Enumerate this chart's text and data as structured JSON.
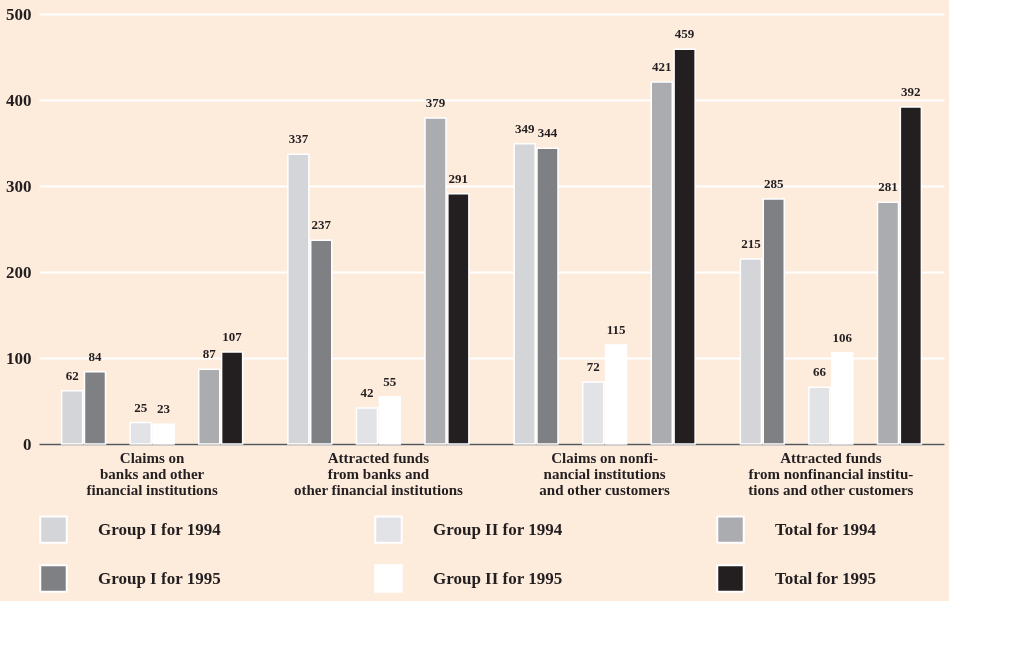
{
  "chart_data": {
    "type": "bar",
    "categories": [
      "Claims on\nbanks and other\nfinancial institutions",
      "Attracted funds\nfrom banks and\nother financial institutions",
      "Claims on nonfi-\nnancial institutions\nand other customers",
      "Attracted funds\nfrom nonfinancial institu-\ntions and other customers"
    ],
    "series": [
      {
        "name": "Group I for 1994",
        "color": "#d4d5d9",
        "values": [
          62,
          337,
          349,
          215
        ]
      },
      {
        "name": "Group I for 1995",
        "color": "#7f8084",
        "values": [
          84,
          237,
          344,
          285
        ]
      },
      {
        "name": "Group II for 1994",
        "color": "#e2e3e7",
        "values": [
          25,
          42,
          72,
          66
        ]
      },
      {
        "name": "Group II for 1995",
        "color": "#ffffff",
        "values": [
          23,
          55,
          115,
          106
        ]
      },
      {
        "name": "Total for 1994",
        "color": "#abacb0",
        "values": [
          87,
          379,
          421,
          281
        ]
      },
      {
        "name": "Total for 1995",
        "color": "#231f20",
        "values": [
          107,
          291,
          459,
          392
        ]
      }
    ],
    "ylim": [
      0,
      500
    ],
    "yticks": [
      0,
      100,
      200,
      300,
      400,
      500
    ],
    "grid": "y",
    "legend": "bottom",
    "data_labels": true
  }
}
